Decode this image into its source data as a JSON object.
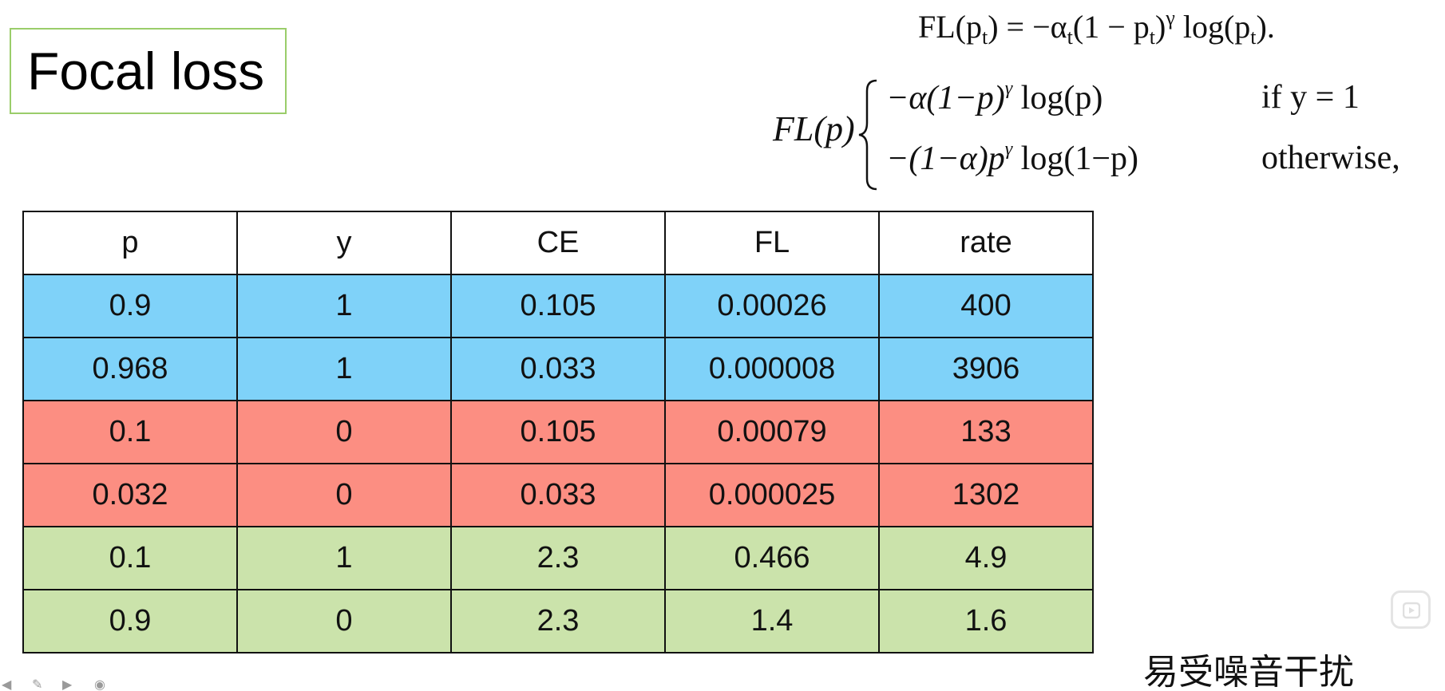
{
  "slide": {
    "title": "Focal loss",
    "formula_top": {
      "lhs": "FL(p",
      "lhs_sub": "t",
      "eq": ") = −α",
      "alpha_sub": "t",
      "paren": "(1 − p",
      "paren_sub": "t",
      "paren_close": ")",
      "gamma": "γ",
      "log": " log(p",
      "log_sub": "t",
      "end": ")."
    },
    "formula_piecewise": {
      "lhs": "FL(p)",
      "case1_expr": "−α(1−p)",
      "case1_sup": "γ",
      "case1_log": " log(p)",
      "case1_cond": "if  y = 1",
      "case2_expr": "−(1−α)p",
      "case2_sup": "γ",
      "case2_log": " log(1−p)",
      "case2_cond": "otherwise,"
    },
    "table": {
      "headers": [
        "p",
        "y",
        "CE",
        "FL",
        "rate"
      ],
      "rows": [
        {
          "group": "blue",
          "cells": [
            "0.9",
            "1",
            "0.105",
            "0.00026",
            "400"
          ]
        },
        {
          "group": "blue",
          "cells": [
            "0.968",
            "1",
            "0.033",
            "0.000008",
            "3906"
          ]
        },
        {
          "group": "red",
          "cells": [
            "0.1",
            "0",
            "0.105",
            "0.00079",
            "133"
          ]
        },
        {
          "group": "red",
          "cells": [
            "0.032",
            "0",
            "0.033",
            "0.000025",
            "1302"
          ]
        },
        {
          "group": "green",
          "cells": [
            "0.1",
            "1",
            "2.3",
            "0.466",
            "4.9"
          ]
        },
        {
          "group": "green",
          "cells": [
            "0.9",
            "0",
            "2.3",
            "1.4",
            "1.6"
          ]
        }
      ]
    },
    "note": "易受噪音干扰",
    "colors": {
      "blue": "#7fd2f9",
      "red": "#fc8e82",
      "green": "#cbe3ab",
      "title_border": "#9acd6a"
    },
    "icons": {
      "play": "play-icon"
    }
  }
}
